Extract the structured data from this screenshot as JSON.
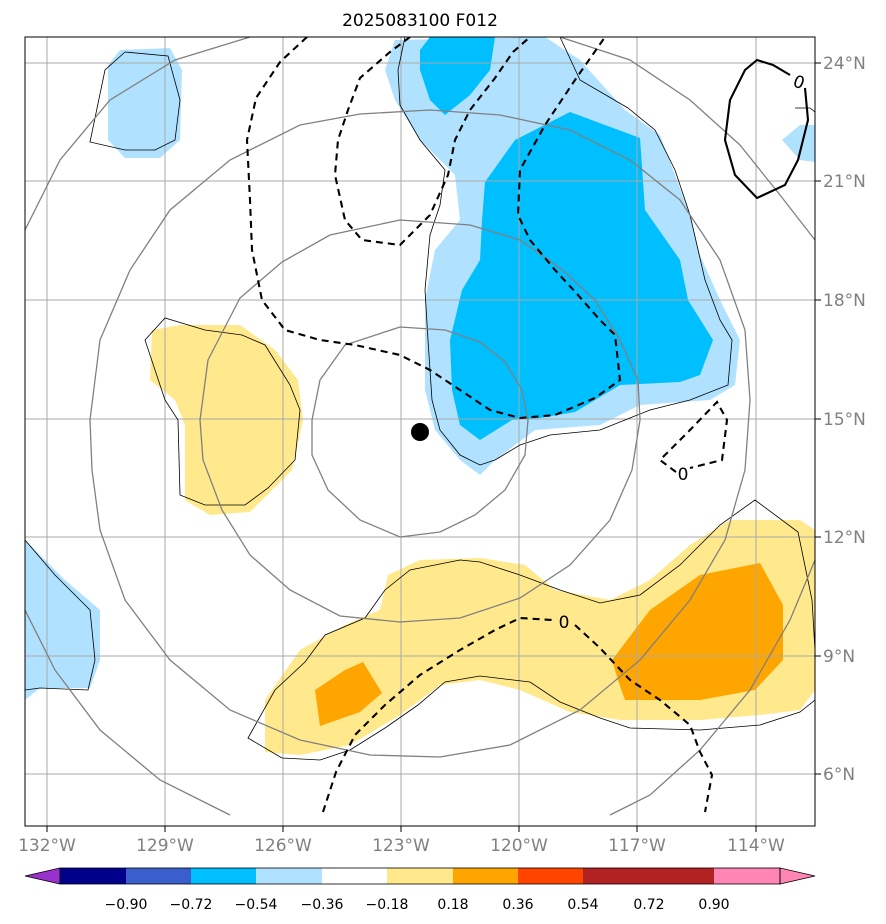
{
  "title": "2025083100 F012",
  "map": {
    "lon_labels": [
      "132°W",
      "129°W",
      "126°W",
      "123°W",
      "120°W",
      "117°W",
      "114°W"
    ],
    "lat_labels": [
      "24°N",
      "21°N",
      "18°N",
      "15°N",
      "12°N",
      "9°N",
      "6°N"
    ],
    "contour_label": "0",
    "center_marker": "storm-center"
  },
  "colorbar": {
    "ticks": [
      "−0.90",
      "−0.72",
      "−0.54",
      "−0.36",
      "−0.18",
      "0.18",
      "0.36",
      "0.54",
      "0.72",
      "0.90"
    ],
    "colors": [
      "#9932CC",
      "#00008B",
      "#3A5FCD",
      "#00BFFF",
      "#B0E2FF",
      "#FFFFFF",
      "#FFE98C",
      "#FFA500",
      "#FF4500",
      "#B22222",
      "#FF86B4"
    ]
  },
  "colors": {
    "light_blue": "#B0E2FF",
    "blue": "#00BFFF",
    "light_yellow": "#FFE98C",
    "orange": "#FFA500",
    "grid": "#A9A9A9",
    "ring": "#808080"
  }
}
